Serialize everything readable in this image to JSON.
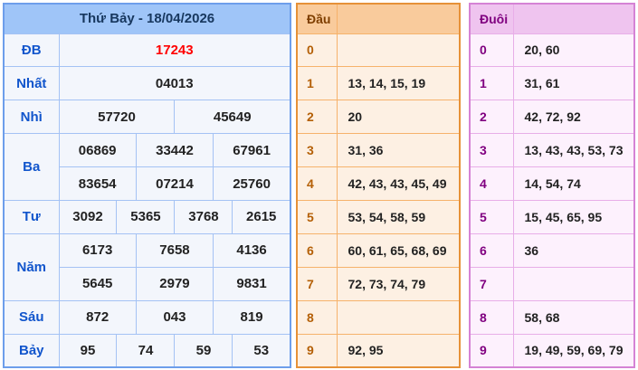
{
  "results": {
    "title": "Thứ Bảy - 18/04/2026",
    "rows": [
      {
        "label": "ĐB",
        "highlight": true,
        "values": [
          "17243"
        ]
      },
      {
        "label": "Nhất",
        "values": [
          "04013"
        ]
      },
      {
        "label": "Nhì",
        "values": [
          "57720",
          "45649"
        ]
      },
      {
        "label": "Ba",
        "values": [
          "06869",
          "33442",
          "67961"
        ],
        "values2": [
          "83654",
          "07214",
          "25760"
        ]
      },
      {
        "label": "Tư",
        "values": [
          "3092",
          "5365",
          "3768",
          "2615"
        ]
      },
      {
        "label": "Năm",
        "values": [
          "6173",
          "7658",
          "4136"
        ],
        "values2": [
          "5645",
          "2979",
          "9831"
        ]
      },
      {
        "label": "Sáu",
        "values": [
          "872",
          "043",
          "819"
        ]
      },
      {
        "label": "Bảy",
        "values": [
          "95",
          "74",
          "59",
          "53"
        ]
      }
    ]
  },
  "dau": {
    "title": "Đầu",
    "rows": [
      {
        "digit": "0",
        "values": []
      },
      {
        "digit": "1",
        "values": [
          "13",
          "14",
          "15",
          "19"
        ]
      },
      {
        "digit": "2",
        "values": [
          "20"
        ]
      },
      {
        "digit": "3",
        "values": [
          "31",
          "36"
        ]
      },
      {
        "digit": "4",
        "values": [
          "42",
          "43",
          "43",
          "45",
          "49"
        ]
      },
      {
        "digit": "5",
        "values": [
          "53",
          "54",
          "58",
          "59"
        ]
      },
      {
        "digit": "6",
        "values": [
          "60",
          "61",
          "65",
          "68",
          "69"
        ]
      },
      {
        "digit": "7",
        "values": [
          "72",
          "73",
          "74",
          "79"
        ]
      },
      {
        "digit": "8",
        "values": []
      },
      {
        "digit": "9",
        "values": [
          "92",
          "95"
        ]
      }
    ]
  },
  "duoi": {
    "title": "Đuôi",
    "rows": [
      {
        "digit": "0",
        "values": [
          "20",
          "60"
        ]
      },
      {
        "digit": "1",
        "values": [
          "31",
          "61"
        ]
      },
      {
        "digit": "2",
        "values": [
          "42",
          "72",
          "92"
        ]
      },
      {
        "digit": "3",
        "values": [
          "13",
          "43",
          "43",
          "53",
          "73"
        ]
      },
      {
        "digit": "4",
        "values": [
          "14",
          "54",
          "74"
        ]
      },
      {
        "digit": "5",
        "values": [
          "15",
          "45",
          "65",
          "95"
        ]
      },
      {
        "digit": "6",
        "values": [
          "36"
        ]
      },
      {
        "digit": "7",
        "values": []
      },
      {
        "digit": "8",
        "values": [
          "58",
          "68"
        ]
      },
      {
        "digit": "9",
        "values": [
          "19",
          "49",
          "59",
          "69",
          "79"
        ]
      }
    ]
  },
  "colors": {
    "results_border": "#6d9eeb",
    "results_header_bg": "#9fc5f8",
    "results_header_text": "#17375e",
    "results_label_text": "#1155cc",
    "special_prize_text": "#ff0000",
    "dau_border": "#e69138",
    "dau_header_bg": "#f9cb9c",
    "dau_label_text": "#b45f06",
    "duoi_border": "#d583d5",
    "duoi_header_bg": "#efc4ef",
    "duoi_label_text": "#800080",
    "value_text": "#222222"
  }
}
